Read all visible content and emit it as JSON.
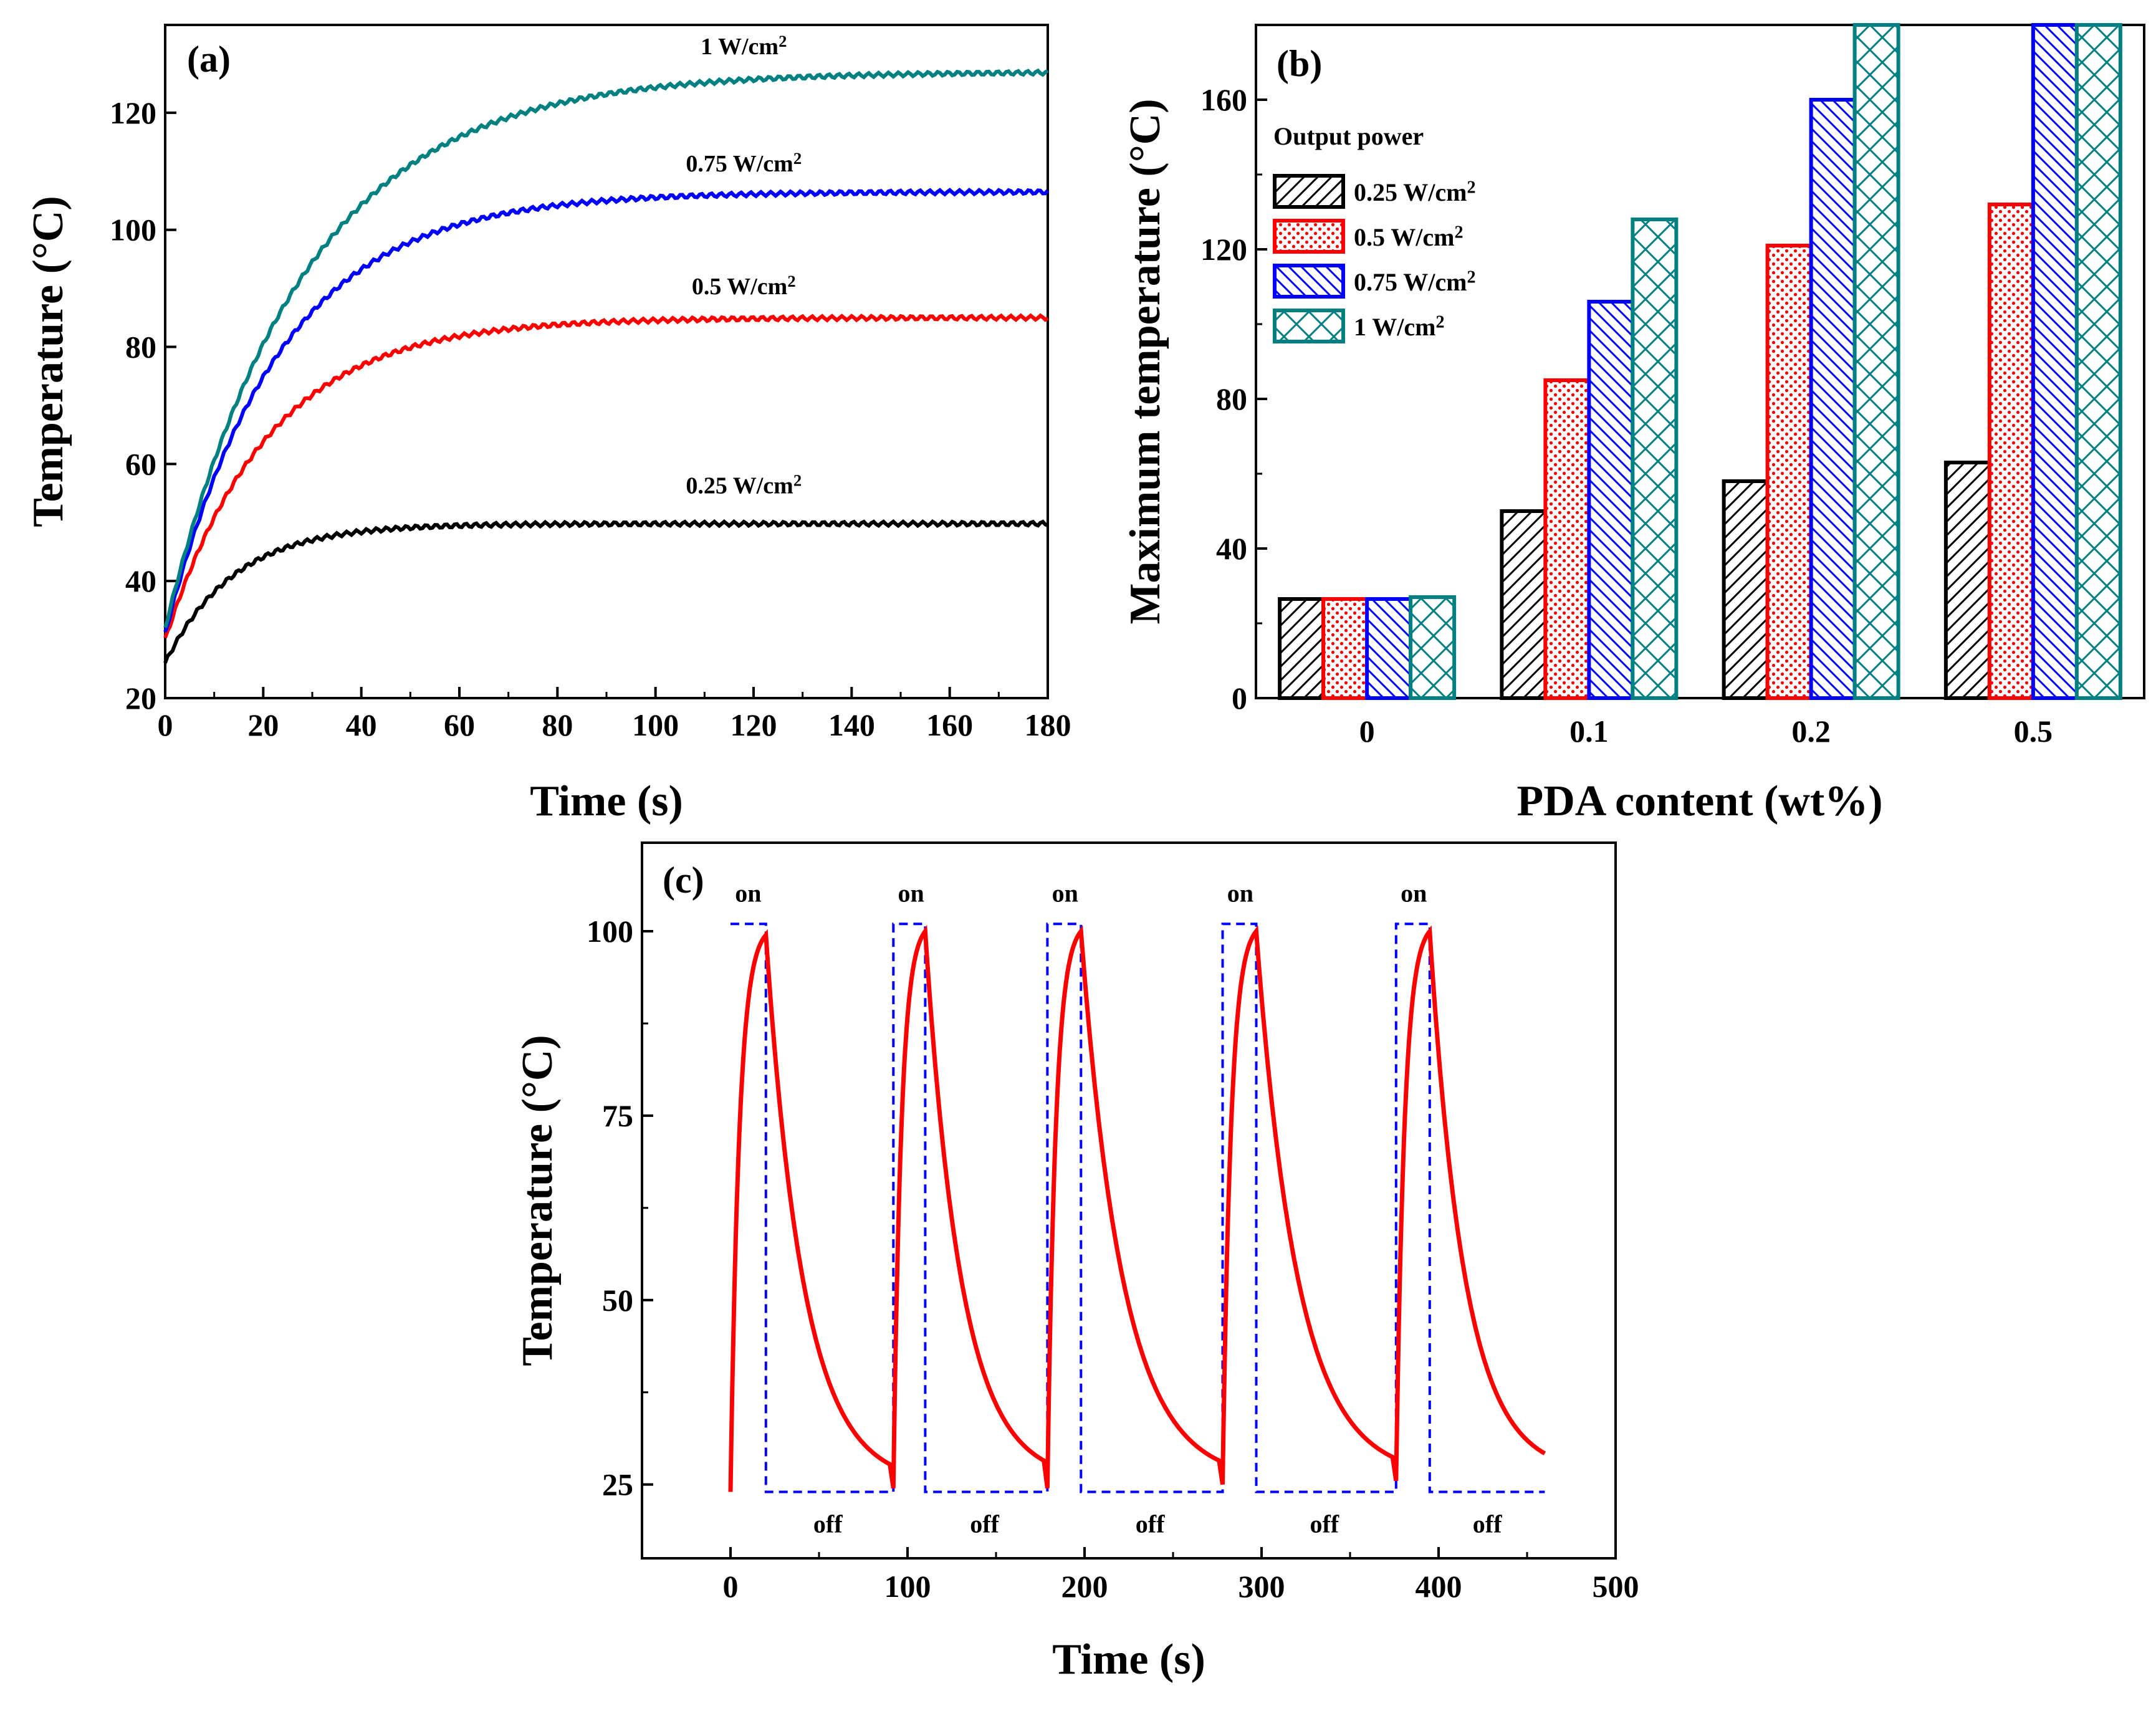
{
  "colors": {
    "p025": "#000000",
    "p05": "#ff0000",
    "p075": "#0000ff",
    "p1": "#008080",
    "switch": "#0000ff",
    "cycle": "#ff0000"
  },
  "chart_data": [
    {
      "id": "a",
      "type": "line",
      "panel_label": "(a)",
      "xlabel": "Time (s)",
      "ylabel": "Temperature (°C)",
      "xlim": [
        0,
        180
      ],
      "ylim": [
        20,
        135
      ],
      "xticks": [
        0,
        20,
        40,
        60,
        80,
        100,
        120,
        140,
        160,
        180
      ],
      "yticks": [
        20,
        40,
        60,
        80,
        100,
        120
      ],
      "series": [
        {
          "name": "0.25 W/cm2",
          "label_base": "0.25 W/cm",
          "label_sup": "2",
          "color_key": "p025",
          "start": 26,
          "plateau": 49.8,
          "tau": 14,
          "label_pos": [
            118,
            55
          ]
        },
        {
          "name": "0.5 W/cm2",
          "label_base": "0.5 W/cm",
          "label_sup": "2",
          "color_key": "p05",
          "start": 30,
          "plateau": 85,
          "tau": 21,
          "label_pos": [
            118,
            89
          ]
        },
        {
          "name": "0.75 W/cm2",
          "label_base": "0.75 W/cm",
          "label_sup": "2",
          "color_key": "p075",
          "start": 31,
          "plateau": 106.5,
          "tau": 23,
          "label_pos": [
            118,
            110
          ]
        },
        {
          "name": "1 W/cm2",
          "label_base": "1 W/cm",
          "label_sup": "2",
          "color_key": "p1",
          "start": 32,
          "plateau": 127,
          "tau": 28,
          "label_pos": [
            118,
            130
          ]
        }
      ]
    },
    {
      "id": "b",
      "type": "bar",
      "panel_label": "(b)",
      "xlabel": "PDA content (wt%)",
      "ylabel": "Maximum temperature (°C)",
      "ylim": [
        0,
        180
      ],
      "yticks": [
        0,
        40,
        80,
        120,
        160
      ],
      "categories": [
        "0",
        "0.1",
        "0.2",
        "0.5"
      ],
      "legend_title": "Output power",
      "series": [
        {
          "name": "0.25 W/cm2",
          "label_base": "0.25 W/cm",
          "label_sup": "2",
          "color_key": "p025",
          "pattern": "hatch-fwd",
          "values": [
            26.5,
            50,
            58,
            63
          ]
        },
        {
          "name": "0.5 W/cm2",
          "label_base": "0.5 W/cm",
          "label_sup": "2",
          "color_key": "p05",
          "pattern": "dots",
          "values": [
            26.5,
            85,
            121,
            132
          ]
        },
        {
          "name": "0.75 W/cm2",
          "label_base": "0.75 W/cm",
          "label_sup": "2",
          "color_key": "p075",
          "pattern": "hatch-back",
          "values": [
            26.5,
            106,
            160,
            180
          ]
        },
        {
          "name": "1 W/cm2",
          "label_base": "1 W/cm",
          "label_sup": "2",
          "color_key": "p1",
          "pattern": "crosshatch",
          "values": [
            27,
            128,
            180,
            180
          ]
        }
      ]
    },
    {
      "id": "c",
      "type": "line",
      "panel_label": "(c)",
      "xlabel": "Time (s)",
      "ylabel": "Temperature (°C)",
      "xlim": [
        -50,
        500
      ],
      "ylim": [
        15,
        112
      ],
      "xticks": [
        0,
        100,
        200,
        300,
        400,
        500
      ],
      "yticks": [
        25,
        50,
        75,
        100
      ],
      "on_label": "on",
      "off_label": "off",
      "switch_high": 101,
      "switch_low": 24,
      "cycles": [
        {
          "on_start": 0,
          "on_end": 20,
          "off_end": 90,
          "peak": 99.5,
          "base": 24
        },
        {
          "on_start": 92,
          "on_end": 110,
          "off_end": 177,
          "peak": 100,
          "base": 24.5
        },
        {
          "on_start": 179,
          "on_end": 198,
          "off_end": 276,
          "peak": 100,
          "base": 24.5
        },
        {
          "on_start": 278,
          "on_end": 297,
          "off_end": 374,
          "peak": 100,
          "base": 25
        },
        {
          "on_start": 376,
          "on_end": 395,
          "off_end": 460,
          "peak": 100,
          "base": 25.5
        }
      ]
    }
  ]
}
